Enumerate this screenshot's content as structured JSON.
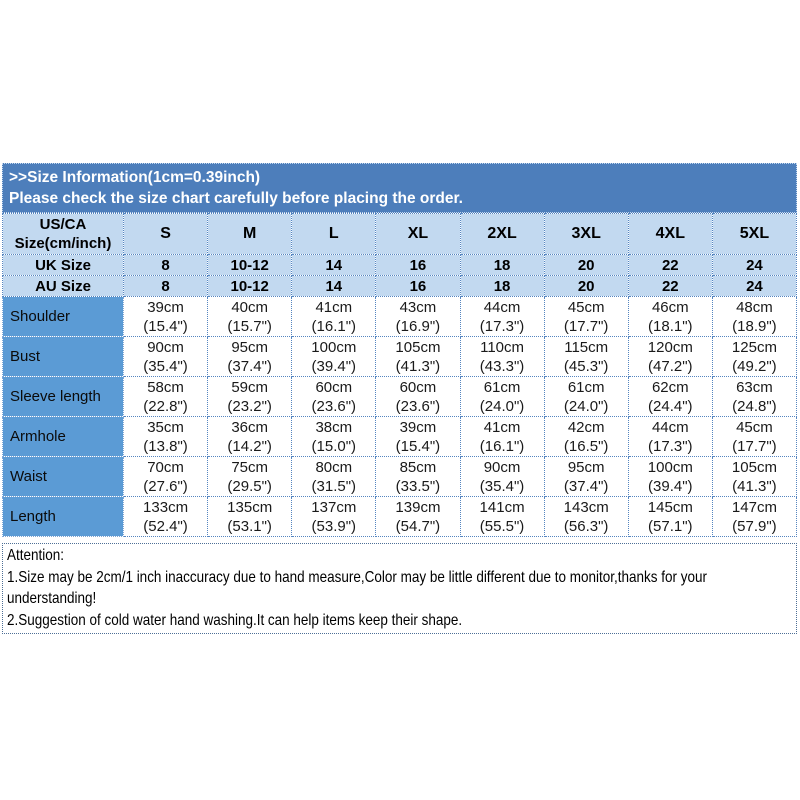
{
  "banner": {
    "title": ">>Size Information(1cm=0.39inch)",
    "subtitle": "Please check the size chart carefully before placing the order."
  },
  "size_table": {
    "corner": {
      "line1": "US/CA",
      "line2": "Size(cm/inch)"
    },
    "columns": [
      "S",
      "M",
      "L",
      "XL",
      "2XL",
      "3XL",
      "4XL",
      "5XL"
    ],
    "region_rows": [
      {
        "label": "UK Size",
        "values": [
          "8",
          "10-12",
          "14",
          "16",
          "18",
          "20",
          "22",
          "24"
        ]
      },
      {
        "label": "AU Size",
        "values": [
          "8",
          "10-12",
          "14",
          "16",
          "18",
          "20",
          "22",
          "24"
        ]
      }
    ],
    "measurement_rows": [
      {
        "label": "Shoulder",
        "cm": [
          "39cm",
          "40cm",
          "41cm",
          "43cm",
          "44cm",
          "45cm",
          "46cm",
          "48cm"
        ],
        "inch": [
          "(15.4\")",
          "(15.7\")",
          "(16.1\")",
          "(16.9\")",
          "(17.3\")",
          "(17.7\")",
          "(18.1\")",
          "(18.9\")"
        ]
      },
      {
        "label": "Bust",
        "cm": [
          "90cm",
          "95cm",
          "100cm",
          "105cm",
          "110cm",
          "115cm",
          "120cm",
          "125cm"
        ],
        "inch": [
          "(35.4\")",
          "(37.4\")",
          "(39.4\")",
          "(41.3\")",
          "(43.3\")",
          "(45.3\")",
          "(47.2\")",
          "(49.2\")"
        ]
      },
      {
        "label": "Sleeve length",
        "cm": [
          "58cm",
          "59cm",
          "60cm",
          "60cm",
          "61cm",
          "61cm",
          "62cm",
          "63cm"
        ],
        "inch": [
          "(22.8\")",
          "(23.2\")",
          "(23.6\")",
          "(23.6\")",
          "(24.0\")",
          "(24.0\")",
          "(24.4\")",
          "(24.8\")"
        ]
      },
      {
        "label": "Armhole",
        "cm": [
          "35cm",
          "36cm",
          "38cm",
          "39cm",
          "41cm",
          "42cm",
          "44cm",
          "45cm"
        ],
        "inch": [
          "(13.8\")",
          "(14.2\")",
          "(15.0\")",
          "(15.4\")",
          "(16.1\")",
          "(16.5\")",
          "(17.3\")",
          "(17.7\")"
        ]
      },
      {
        "label": "Waist",
        "cm": [
          "70cm",
          "75cm",
          "80cm",
          "85cm",
          "90cm",
          "95cm",
          "100cm",
          "105cm"
        ],
        "inch": [
          "(27.6\")",
          "(29.5\")",
          "(31.5\")",
          "(33.5\")",
          "(35.4\")",
          "(37.4\")",
          "(39.4\")",
          "(41.3\")"
        ]
      },
      {
        "label": "Length",
        "cm": [
          "133cm",
          "135cm",
          "137cm",
          "139cm",
          "141cm",
          "143cm",
          "145cm",
          "147cm"
        ],
        "inch": [
          "(52.4\")",
          "(53.1\")",
          "(53.9\")",
          "(54.7\")",
          "(55.5\")",
          "(56.3\")",
          "(57.1\")",
          "(57.9\")"
        ]
      }
    ]
  },
  "attention": {
    "heading": "Attention:",
    "lines": [
      "1.Size may be 2cm/1 inch inaccuracy due to hand measure,Color may be little different due to monitor,thanks for your understanding!",
      "2.Suggestion of cold water hand washing.It can help items keep their shape."
    ]
  },
  "colors": {
    "banner_bg": "#4d7ebb",
    "table_header_bg": "#c2d9f0",
    "label_column_bg": "#5b9bd5",
    "dotted_border": "#5585c0",
    "banner_text": "#ffffff"
  }
}
